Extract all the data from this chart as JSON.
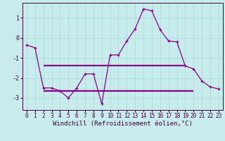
{
  "xlabel": "Windchill (Refroidissement éolien,°C)",
  "bg_color": "#c8ecec",
  "grid_color": "#b0dede",
  "line_color": "#880088",
  "spine_color": "#440044",
  "xlim": [
    -0.5,
    23.5
  ],
  "ylim": [
    -3.6,
    1.75
  ],
  "yticks": [
    -3,
    -2,
    -1,
    0,
    1
  ],
  "xticks": [
    0,
    1,
    2,
    3,
    4,
    5,
    6,
    7,
    8,
    9,
    10,
    11,
    12,
    13,
    14,
    15,
    16,
    17,
    18,
    19,
    20,
    21,
    22,
    23
  ],
  "line1_x": [
    0,
    1,
    2,
    3,
    4,
    5,
    6,
    7,
    8,
    9,
    10,
    11,
    12,
    13,
    14,
    15,
    16,
    17,
    18,
    19,
    20,
    21,
    22,
    23
  ],
  "line1_y": [
    -0.35,
    -0.5,
    -2.5,
    -2.5,
    -2.65,
    -3.0,
    -2.5,
    -1.8,
    -1.8,
    -3.3,
    -0.85,
    -0.85,
    -0.15,
    0.45,
    1.45,
    1.35,
    0.4,
    -0.15,
    -0.2,
    -1.4,
    -1.55,
    -2.15,
    -2.45,
    -2.55
  ],
  "hline1_y": -1.4,
  "hline1_x1": 2,
  "hline1_x2": 19,
  "hline2_y": -2.65,
  "hline2_x1": 2,
  "hline2_x2": 20,
  "xlabel_fontsize": 6.5,
  "tick_fontsize": 6,
  "xtick_fontsize": 5.5
}
